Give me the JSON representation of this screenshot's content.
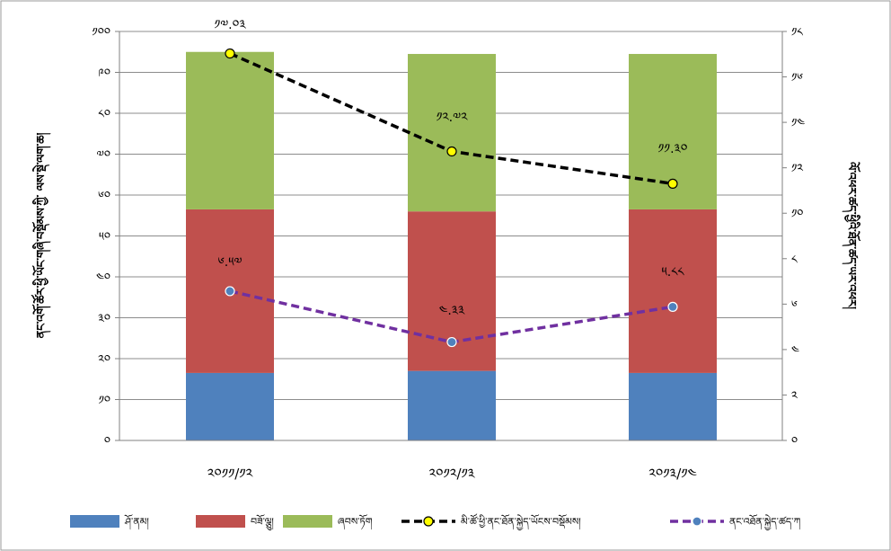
{
  "chart_data": {
    "type": "bar",
    "stacked": true,
    "categories": [
      "༢༠༡༡/༡༢",
      "༢༠༡༢/༡༣",
      "༢༠༡༣/༡༤"
    ],
    "series": [
      {
        "name": "ཤོ་ནམ།",
        "type": "bar",
        "axis": "left",
        "color": "#4F81BD",
        "values": [
          16.5,
          17,
          16.5
        ]
      },
      {
        "name": "བཟོ་ལྕུ།",
        "type": "bar",
        "axis": "left",
        "color": "#C0504D",
        "values": [
          40,
          39,
          40
        ]
      },
      {
        "name": "ཞབས་ཏོག",
        "type": "bar",
        "axis": "left",
        "color": "#9BBB59",
        "values": [
          38.5,
          38.5,
          38
        ]
      },
      {
        "name": "མི་ཚོ་ཕྱི་ནང་ཐོན་སྐྱེད་ཡོངས་བསྡོམས།",
        "type": "line",
        "axis": "right",
        "color": "#000000",
        "marker": "#FFFF00",
        "values": [
          17.03,
          12.72,
          11.3
        ]
      },
      {
        "name": "ནང་འཐོན་སྐྱེད་ཚད་ཀ",
        "type": "line",
        "axis": "right",
        "color": "#7030A0",
        "marker": "#4F81BD",
        "values": [
          6.57,
          4.33,
          5.88
        ]
      }
    ],
    "data_labels": {
      "line1": [
        "༡༧.༠༣",
        "༡༢.༧༢",
        "༡༡.༣༠"
      ],
      "line2": [
        "༦.༥༧",
        "༤.༣༣",
        "༥.༨༨"
      ]
    },
    "left_axis": {
      "label": "ནང་འགོ་ཚོར་ཕྱི་ཡོང་གཞི་བསྡོམས་ཀྱི་ ལས་སྡེ་ལག་ཆ།",
      "ylim": [
        0,
        100
      ],
      "ticks": [
        "༠",
        "༡༠",
        "༢༠",
        "༣༠",
        "༤༠",
        "༥༠",
        "༦༠",
        "༧༠",
        "༨༠",
        "༩༠",
        "༡༠༠"
      ]
    },
    "right_axis": {
      "label": "ལོ་འཕར་ཚད་ཕྱིའི་ཐོན་ཚད་ཡར་འཕར།",
      "ylim": [
        0,
        18
      ],
      "ticks": [
        "༠",
        "༢",
        "༤",
        "༦",
        "༨",
        "༡༠",
        "༡༢",
        "༡༤",
        "༡༦",
        "༡༨"
      ]
    },
    "legend_position": "bottom",
    "grid": true
  }
}
